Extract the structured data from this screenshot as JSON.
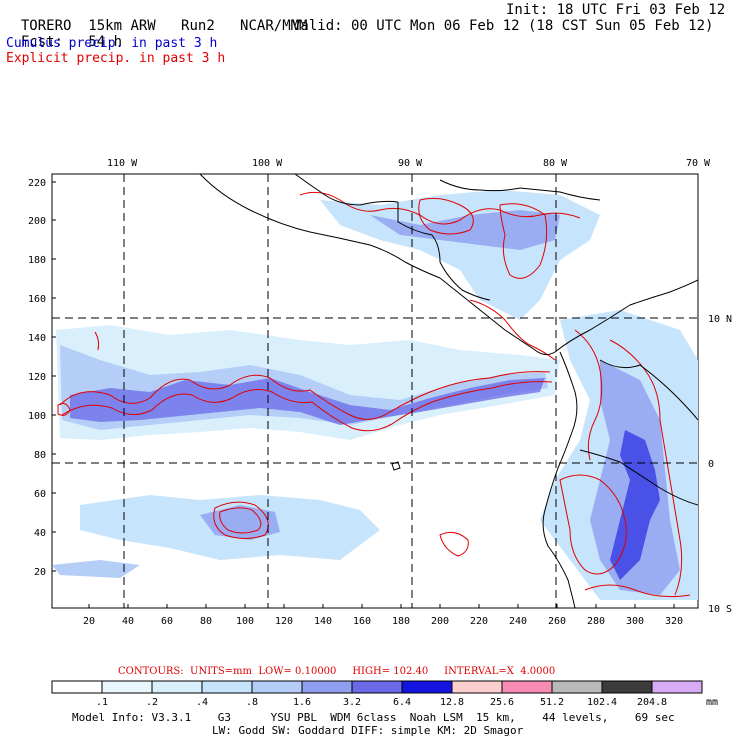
{
  "header": {
    "model": "TORERO",
    "resolution": "15km ARW",
    "run": "Run2",
    "org": "NCAR/MMM",
    "init": "Init: 18 UTC Fri 03 Feb 12",
    "fcst_label": "Fcst:",
    "fcst_value": "54 h",
    "valid": "Valid: 00 UTC Mon 06 Feb 12 (18 CST Sun 05 Feb 12)"
  },
  "fields": {
    "cumulus": "Cumulus precip. in past 3 h",
    "explicit": "Explicit precip. in past 3 h"
  },
  "colors": {
    "cumulus": "#0000cc",
    "explicit": "#e00000",
    "coast": "#000000"
  },
  "map": {
    "lon_labels": [
      "110 W",
      "100 W",
      "90 W",
      "80 W",
      "70 W"
    ],
    "lat_labels": [
      "10 N",
      "0",
      "10 S"
    ],
    "y_ticks": [
      "220",
      "200",
      "180",
      "160",
      "140",
      "120",
      "100",
      "80",
      "60",
      "40",
      "20"
    ],
    "x_ticks": [
      "20",
      "40",
      "60",
      "80",
      "100",
      "120",
      "140",
      "160",
      "180",
      "200",
      "220",
      "240",
      "260",
      "280",
      "300",
      "320"
    ]
  },
  "contours": {
    "label": "CONTOURS:",
    "units": "UNITS=mm",
    "low": "LOW= 0.10000",
    "high": "HIGH= 102.40",
    "interval": "INTERVAL=X  4.0000"
  },
  "colorbar": {
    "labels": [
      ".1",
      ".2",
      ".4",
      ".8",
      "1.6",
      "3.2",
      "6.4",
      "12.8",
      "25.6",
      "51.2",
      "102.4",
      "204.8"
    ],
    "units": "mm",
    "colors": [
      "#ffffff",
      "#eaf6fd",
      "#d9effb",
      "#c6e4fb",
      "#b4cef7",
      "#8f9ff0",
      "#6a6ae8",
      "#1414e0",
      "#fccfcf",
      "#f68cb4",
      "#b9b9b9",
      "#3c3c3c",
      "#d8acf4"
    ]
  },
  "footer": {
    "line1": "Model Info: V3.3.1    G3      YSU PBL  WDM 6class  Noah LSM  15 km,    44 levels,    69 sec",
    "line2": "LW: Godd SW: Goddard DIFF: simple KM: 2D Smagor"
  }
}
